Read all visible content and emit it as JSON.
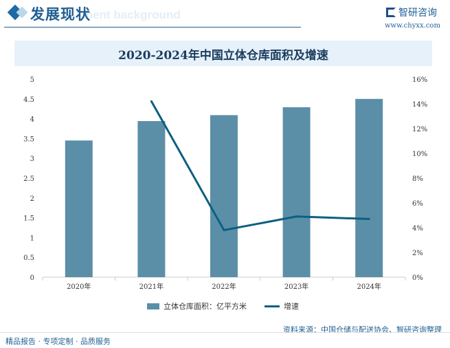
{
  "header": {
    "title": "发展现状",
    "bg_text": "ment background",
    "logo": "智研咨询",
    "url": "www.chyxx.com"
  },
  "chart_data": {
    "type": "bar+line",
    "title": "2020-2024年中国立体仓库面积及增速",
    "categories": [
      "2020年",
      "2021年",
      "2022年",
      "2023年",
      "2024年"
    ],
    "series": [
      {
        "name": "立体仓库面积：亿平方米",
        "type": "bar",
        "axis": "left",
        "color": "#5b8fa8",
        "values": [
          3.45,
          3.94,
          4.09,
          4.29,
          4.5
        ]
      },
      {
        "name": "增速",
        "type": "line",
        "axis": "right",
        "color": "#0d5f7f",
        "values": [
          null,
          14.2,
          3.8,
          4.9,
          4.7
        ]
      }
    ],
    "left_axis": {
      "range": [
        0,
        5
      ],
      "ticks": [
        "0",
        "0.5",
        "1",
        "1.5",
        "2",
        "2.5",
        "3",
        "3.5",
        "4",
        "4.5",
        "5"
      ]
    },
    "right_axis": {
      "range": [
        0,
        16
      ],
      "ticks": [
        "0%",
        "2%",
        "4%",
        "6%",
        "8%",
        "10%",
        "12%",
        "14%",
        "16%"
      ]
    },
    "grid": false,
    "legend": "bottom"
  },
  "source": "资料来源：中国仓储与配送协会、智研咨询整理",
  "footer": "精品报告 · 专项定制 · 品质服务",
  "watermark": "智研咨询"
}
